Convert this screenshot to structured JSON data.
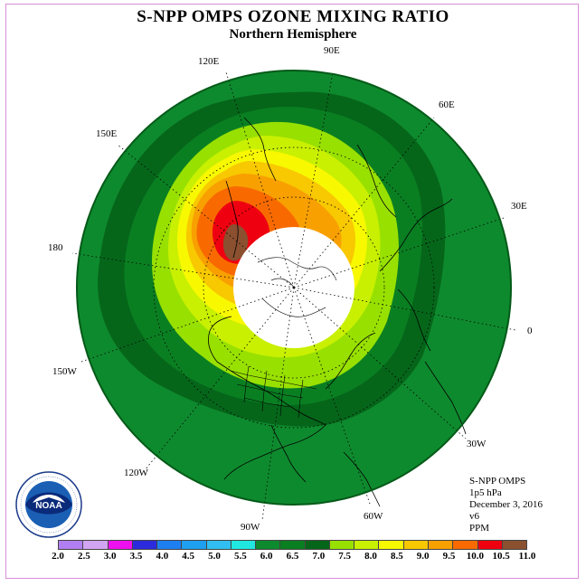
{
  "title": "S-NPP OMPS OZONE MIXING RATIO",
  "subtitle": "Northern Hemisphere",
  "longitude_labels": {
    "e120": "120E",
    "e90": "90E",
    "e60": "60E",
    "e150": "150E",
    "e30": "30E",
    "lon180": "180",
    "lon0": "0",
    "w150": "150W",
    "w30": "30W",
    "w120": "120W",
    "w60": "60W",
    "w90": "90W"
  },
  "info": {
    "instrument": "S-NPP OMPS",
    "level": "1p5 hPa",
    "date": "December 3, 2016",
    "version": "v6",
    "units": "PPM"
  },
  "legend": {
    "ticks": [
      "2.0",
      "2.5",
      "3.0",
      "3.5",
      "4.0",
      "4.5",
      "5.0",
      "5.5",
      "6.0",
      "6.5",
      "7.0",
      "7.5",
      "8.0",
      "8.5",
      "9.0",
      "9.5",
      "10.0",
      "10.5",
      "11.0"
    ],
    "colors": [
      "#b27ff2",
      "#d2a5f2",
      "#ee10ee",
      "#2b2bdd",
      "#1e7ff0",
      "#1e9ff0",
      "#30bff0",
      "#20e8e0",
      "#0e8a2e",
      "#0a7f22",
      "#05661a",
      "#98e000",
      "#c8f000",
      "#f8f800",
      "#f8c800",
      "#f8a000",
      "#f86a00",
      "#ee0010",
      "#8a5030"
    ]
  },
  "colors": {
    "mid_green": "#0e8a2e",
    "dark_green": "#05661a",
    "polar_night": "#ffffff",
    "frame": "#d98ed9"
  },
  "logo": {
    "text": "NOAA",
    "ring_text": "NATIONAL OCEANIC AND ATMOSPHERIC ADMINISTRATION · U.S. DEPARTMENT OF COMMERCE"
  }
}
